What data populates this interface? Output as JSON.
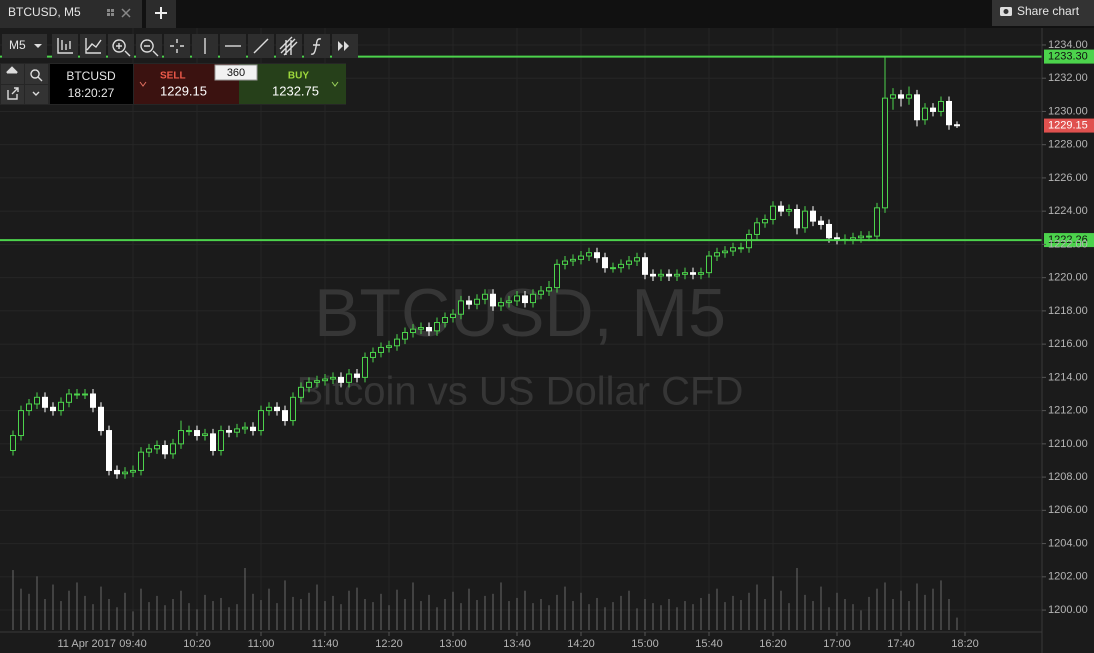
{
  "ui": {
    "tab": "BTCUSD, M5",
    "share": "Share chart",
    "timeframe": "M5",
    "symbol": "BTCUSD",
    "time": "18:20:27",
    "sell_label": "SELL",
    "sell_price": "1229.15",
    "spread": "360",
    "buy_label": "BUY",
    "buy_price": "1232.75"
  },
  "chart_data": {
    "type": "candlestick",
    "watermark": [
      "BTCUSD, M5",
      "Bitcoin vs US Dollar CFD"
    ],
    "date_label": "11 Apr 2017",
    "up_color": "#4cd34c",
    "down_color": "#ffffff",
    "volume_color": "#6a6a6a",
    "grid": true,
    "ylim": [
      1198.8,
      1234.9
    ],
    "yticks": [
      {
        "value": 1234,
        "label": "1234.00"
      },
      {
        "value": 1232,
        "label": "1232.00"
      },
      {
        "value": 1230,
        "label": "1230.00"
      },
      {
        "value": 1228,
        "label": "1228.00"
      },
      {
        "value": 1226,
        "label": "1226.00"
      },
      {
        "value": 1224,
        "label": "1224.00"
      },
      {
        "value": 1222,
        "label": "1222.00"
      },
      {
        "value": 1220,
        "label": "1220.00"
      },
      {
        "value": 1218,
        "label": "1218.00"
      },
      {
        "value": 1216,
        "label": "1216.00"
      },
      {
        "value": 1214,
        "label": "1214.00"
      },
      {
        "value": 1212,
        "label": "1212.00"
      },
      {
        "value": 1210,
        "label": "1210.00"
      },
      {
        "value": 1208,
        "label": "1208.00"
      },
      {
        "value": 1206,
        "label": "1206.00"
      },
      {
        "value": 1204,
        "label": "1204.00"
      },
      {
        "value": 1202,
        "label": "1202.00"
      },
      {
        "value": 1200,
        "label": "1200.00"
      }
    ],
    "hlines": [
      {
        "value": 1233.3,
        "label": "1233.30",
        "color": "#4cd34c"
      },
      {
        "value": 1222.26,
        "label": "1222.26",
        "color": "#4cd34c"
      }
    ],
    "price_marker": {
      "value": 1229.15,
      "label": "1229.15",
      "color": "#e0514f"
    },
    "categories": [
      null,
      null,
      null,
      null,
      null,
      null,
      null,
      null,
      null,
      null,
      null,
      null,
      null,
      null,
      null,
      "09:40",
      null,
      null,
      null,
      null,
      null,
      null,
      null,
      "10:20",
      null,
      null,
      null,
      null,
      null,
      null,
      null,
      "11:00",
      null,
      null,
      null,
      null,
      null,
      null,
      null,
      "11:40",
      null,
      null,
      null,
      null,
      null,
      null,
      null,
      "12:20",
      null,
      null,
      null,
      null,
      null,
      null,
      null,
      "13:00",
      null,
      null,
      null,
      null,
      null,
      null,
      null,
      "13:40",
      null,
      null,
      null,
      null,
      null,
      null,
      null,
      "14:20",
      null,
      null,
      null,
      null,
      null,
      null,
      null,
      "15:00",
      null,
      null,
      null,
      null,
      null,
      null,
      null,
      "15:40",
      null,
      null,
      null,
      null,
      null,
      null,
      null,
      "16:20",
      null,
      null,
      null,
      null,
      null,
      null,
      null,
      "17:00",
      null,
      null,
      null,
      null,
      null,
      null,
      null,
      "17:40",
      null,
      null,
      null,
      null,
      null,
      null,
      null,
      "18:20"
    ],
    "open": [
      1209.6,
      1210.5,
      1212.0,
      1212.4,
      1212.8,
      1212.2,
      1212.0,
      1212.5,
      1213.0,
      1213.0,
      1213.0,
      1212.2,
      1210.8,
      1208.4,
      1208.2,
      1208.3,
      1208.4,
      1209.5,
      1209.7,
      1209.9,
      1209.4,
      1210.0,
      1210.8,
      1210.8,
      1210.5,
      1210.6,
      1209.6,
      1210.8,
      1210.7,
      1210.9,
      1211.0,
      1210.8,
      1212.0,
      1212.2,
      1212.0,
      1211.4,
      1212.8,
      1213.4,
      1213.7,
      1213.8,
      1213.9,
      1214.0,
      1213.7,
      1214.2,
      1214.0,
      1215.2,
      1215.5,
      1215.8,
      1215.9,
      1216.3,
      1216.7,
      1216.9,
      1217.0,
      1216.8,
      1217.3,
      1217.6,
      1217.8,
      1218.6,
      1218.4,
      1218.7,
      1219.0,
      1218.3,
      1218.5,
      1218.6,
      1218.9,
      1218.5,
      1219.0,
      1219.2,
      1219.4,
      1220.8,
      1221.0,
      1221.1,
      1221.3,
      1221.5,
      1221.2,
      1220.6,
      1220.6,
      1220.8,
      1221.0,
      1221.2,
      1220.2,
      1220.1,
      1220.2,
      1220.1,
      1220.2,
      1220.3,
      1220.2,
      1220.3,
      1221.3,
      1221.5,
      1221.6,
      1221.8,
      1221.8,
      1222.6,
      1223.3,
      1223.5,
      1224.3,
      1224.0,
      1224.1,
      1223.0,
      1224.0,
      1223.4,
      1223.2,
      1222.4,
      1222.3,
      1222.3,
      1222.4,
      1222.5,
      1222.5,
      1224.2,
      1230.8,
      1231.0,
      1230.8,
      1231.0,
      1229.5,
      1230.2,
      1230.0,
      1230.6,
      1229.2,
      null
    ],
    "high": [
      1210.8,
      1212.3,
      1212.7,
      1213.1,
      1213.1,
      1212.5,
      1212.8,
      1213.3,
      1213.3,
      1213.3,
      1213.3,
      1212.5,
      1211.1,
      1208.7,
      1208.6,
      1208.7,
      1209.8,
      1210.0,
      1210.2,
      1210.2,
      1210.3,
      1211.4,
      1211.1,
      1211.1,
      1210.9,
      1210.9,
      1211.1,
      1211.1,
      1211.2,
      1211.3,
      1211.3,
      1212.3,
      1212.5,
      1212.5,
      1212.3,
      1213.1,
      1213.7,
      1214.0,
      1214.1,
      1214.2,
      1214.3,
      1214.3,
      1214.5,
      1214.5,
      1215.5,
      1215.8,
      1216.1,
      1216.2,
      1216.6,
      1217.0,
      1217.2,
      1217.3,
      1217.3,
      1217.6,
      1217.9,
      1218.1,
      1218.9,
      1218.9,
      1219.0,
      1219.3,
      1219.3,
      1218.8,
      1218.9,
      1219.2,
      1219.2,
      1219.3,
      1219.5,
      1219.8,
      1221.1,
      1221.3,
      1221.4,
      1221.6,
      1221.8,
      1221.8,
      1221.5,
      1220.9,
      1221.1,
      1221.3,
      1221.5,
      1221.5,
      1220.5,
      1220.5,
      1220.5,
      1220.5,
      1220.6,
      1220.6,
      1220.6,
      1221.6,
      1221.8,
      1221.9,
      1222.1,
      1222.1,
      1222.9,
      1223.6,
      1223.8,
      1224.6,
      1224.6,
      1224.4,
      1224.4,
      1224.3,
      1224.3,
      1223.7,
      1223.5,
      1222.7,
      1222.6,
      1222.7,
      1222.8,
      1222.8,
      1224.5,
      1233.3,
      1231.4,
      1231.3,
      1231.5,
      1231.3,
      1230.5,
      1230.5,
      1230.9,
      1230.9,
      1229.4,
      null
    ],
    "low": [
      1209.3,
      1210.2,
      1211.7,
      1212.1,
      1211.9,
      1211.7,
      1211.7,
      1212.2,
      1212.7,
      1212.7,
      1211.9,
      1210.5,
      1208.1,
      1207.9,
      1207.9,
      1208.0,
      1208.1,
      1209.2,
      1209.4,
      1209.1,
      1209.1,
      1209.7,
      1210.5,
      1210.2,
      1210.2,
      1209.3,
      1209.3,
      1210.4,
      1210.4,
      1210.6,
      1210.5,
      1210.5,
      1211.7,
      1211.7,
      1211.1,
      1211.1,
      1212.5,
      1213.1,
      1213.4,
      1213.5,
      1213.6,
      1213.4,
      1213.4,
      1213.7,
      1213.7,
      1214.9,
      1215.2,
      1215.5,
      1215.6,
      1216.0,
      1216.4,
      1216.6,
      1216.5,
      1216.5,
      1217.0,
      1217.3,
      1217.5,
      1218.1,
      1218.1,
      1218.4,
      1218.0,
      1218.0,
      1218.2,
      1218.3,
      1218.2,
      1218.2,
      1218.7,
      1218.9,
      1219.1,
      1220.5,
      1220.7,
      1220.8,
      1221.0,
      1220.9,
      1220.3,
      1220.3,
      1220.3,
      1220.5,
      1220.7,
      1219.9,
      1219.8,
      1219.8,
      1219.8,
      1219.8,
      1219.9,
      1219.9,
      1219.9,
      1220.0,
      1221.0,
      1221.2,
      1221.3,
      1221.5,
      1221.5,
      1222.3,
      1223.0,
      1223.2,
      1223.7,
      1223.7,
      1222.6,
      1222.7,
      1223.1,
      1222.9,
      1222.1,
      1222.0,
      1222.0,
      1222.0,
      1222.1,
      1222.2,
      1222.2,
      1223.9,
      1230.1,
      1230.3,
      1230.4,
      1229.1,
      1229.2,
      1229.7,
      1229.7,
      1228.9,
      1229.0,
      null
    ],
    "close": [
      1210.5,
      1212.0,
      1212.4,
      1212.8,
      1212.2,
      1212.0,
      1212.5,
      1213.0,
      1213.0,
      1213.0,
      1212.2,
      1210.8,
      1208.4,
      1208.2,
      1208.3,
      1208.4,
      1209.5,
      1209.7,
      1209.9,
      1209.4,
      1210.0,
      1210.8,
      1210.8,
      1210.5,
      1210.6,
      1209.6,
      1210.8,
      1210.7,
      1210.9,
      1211.0,
      1210.8,
      1212.0,
      1212.2,
      1212.0,
      1211.4,
      1212.8,
      1213.4,
      1213.7,
      1213.8,
      1213.9,
      1214.0,
      1213.7,
      1214.2,
      1214.0,
      1215.2,
      1215.5,
      1215.8,
      1215.9,
      1216.3,
      1216.7,
      1216.9,
      1217.0,
      1216.8,
      1217.3,
      1217.6,
      1217.8,
      1218.6,
      1218.4,
      1218.7,
      1219.0,
      1218.3,
      1218.5,
      1218.6,
      1218.9,
      1218.5,
      1219.0,
      1219.2,
      1219.4,
      1220.8,
      1221.0,
      1221.1,
      1221.3,
      1221.5,
      1221.2,
      1220.6,
      1220.6,
      1220.8,
      1221.0,
      1221.2,
      1220.2,
      1220.1,
      1220.2,
      1220.1,
      1220.2,
      1220.3,
      1220.2,
      1220.3,
      1221.3,
      1221.5,
      1221.6,
      1221.8,
      1221.8,
      1222.6,
      1223.3,
      1223.5,
      1224.3,
      1224.0,
      1224.1,
      1223.0,
      1224.0,
      1223.4,
      1223.2,
      1222.4,
      1222.3,
      1222.3,
      1222.4,
      1222.5,
      1222.5,
      1224.2,
      1230.8,
      1231.0,
      1230.8,
      1231.0,
      1229.5,
      1230.2,
      1230.0,
      1230.6,
      1229.2,
      1229.15,
      null
    ],
    "volume": [
      58,
      40,
      35,
      52,
      30,
      44,
      28,
      38,
      46,
      33,
      25,
      42,
      30,
      22,
      36,
      18,
      40,
      27,
      33,
      24,
      30,
      38,
      26,
      20,
      34,
      28,
      31,
      22,
      25,
      60,
      35,
      29,
      40,
      26,
      48,
      32,
      30,
      36,
      44,
      28,
      33,
      25,
      38,
      41,
      30,
      27,
      35,
      24,
      39,
      30,
      46,
      28,
      34,
      22,
      30,
      37,
      26,
      40,
      29,
      33,
      35,
      46,
      28,
      31,
      38,
      26,
      30,
      24,
      34,
      42,
      28,
      36,
      25,
      31,
      22,
      27,
      33,
      38,
      21,
      30,
      26,
      24,
      30,
      22,
      28,
      25,
      31,
      35,
      40,
      27,
      33,
      29,
      36,
      44,
      30,
      52,
      38,
      26,
      60,
      34,
      28,
      42,
      22,
      36,
      30,
      25,
      19,
      32,
      40,
      46,
      30,
      38,
      28,
      45,
      34,
      40,
      48,
      30,
      12,
      null
    ]
  }
}
